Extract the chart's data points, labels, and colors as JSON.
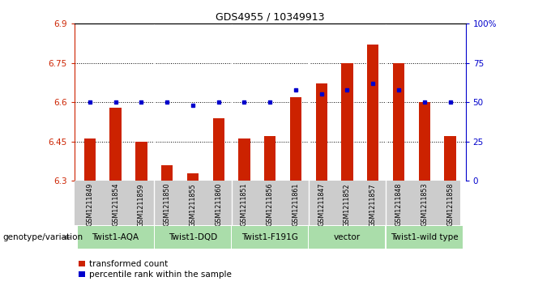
{
  "title": "GDS4955 / 10349913",
  "samples": [
    "GSM1211849",
    "GSM1211854",
    "GSM1211859",
    "GSM1211850",
    "GSM1211855",
    "GSM1211860",
    "GSM1211851",
    "GSM1211856",
    "GSM1211861",
    "GSM1211847",
    "GSM1211852",
    "GSM1211857",
    "GSM1211848",
    "GSM1211853",
    "GSM1211858"
  ],
  "red_values": [
    6.46,
    6.58,
    6.45,
    6.36,
    6.33,
    6.54,
    6.46,
    6.47,
    6.62,
    6.67,
    6.75,
    6.82,
    6.75,
    6.6,
    6.47
  ],
  "blue_values": [
    50,
    50,
    50,
    50,
    48,
    50,
    50,
    50,
    58,
    55,
    58,
    62,
    58,
    50,
    50
  ],
  "ylim_left": [
    6.3,
    6.9
  ],
  "ylim_right": [
    0,
    100
  ],
  "yticks_left": [
    6.3,
    6.45,
    6.6,
    6.75,
    6.9
  ],
  "yticks_right": [
    0,
    25,
    50,
    75,
    100
  ],
  "ytick_labels_left": [
    "6.3",
    "6.45",
    "6.6",
    "6.75",
    "6.9"
  ],
  "ytick_labels_right": [
    "0",
    "25",
    "50",
    "75",
    "100%"
  ],
  "hlines": [
    6.45,
    6.6,
    6.75
  ],
  "groups": [
    {
      "label": "Twist1-AQA",
      "start": 0,
      "end": 2
    },
    {
      "label": "Twist1-DQD",
      "start": 3,
      "end": 5
    },
    {
      "label": "Twist1-F191G",
      "start": 6,
      "end": 8
    },
    {
      "label": "vector",
      "start": 9,
      "end": 11
    },
    {
      "label": "Twist1-wild type",
      "start": 12,
      "end": 14
    }
  ],
  "group_boundaries_x": [
    -0.5,
    2.5,
    5.5,
    8.5,
    11.5,
    14.5
  ],
  "bar_color": "#cc2200",
  "blue_color": "#0000cc",
  "legend_red": "transformed count",
  "legend_blue": "percentile rank within the sample",
  "genotype_label": "genotype/variation",
  "sample_bg_color": "#cccccc",
  "group_bg_color": "#aaddaa",
  "white_divider_color": "#ffffff"
}
